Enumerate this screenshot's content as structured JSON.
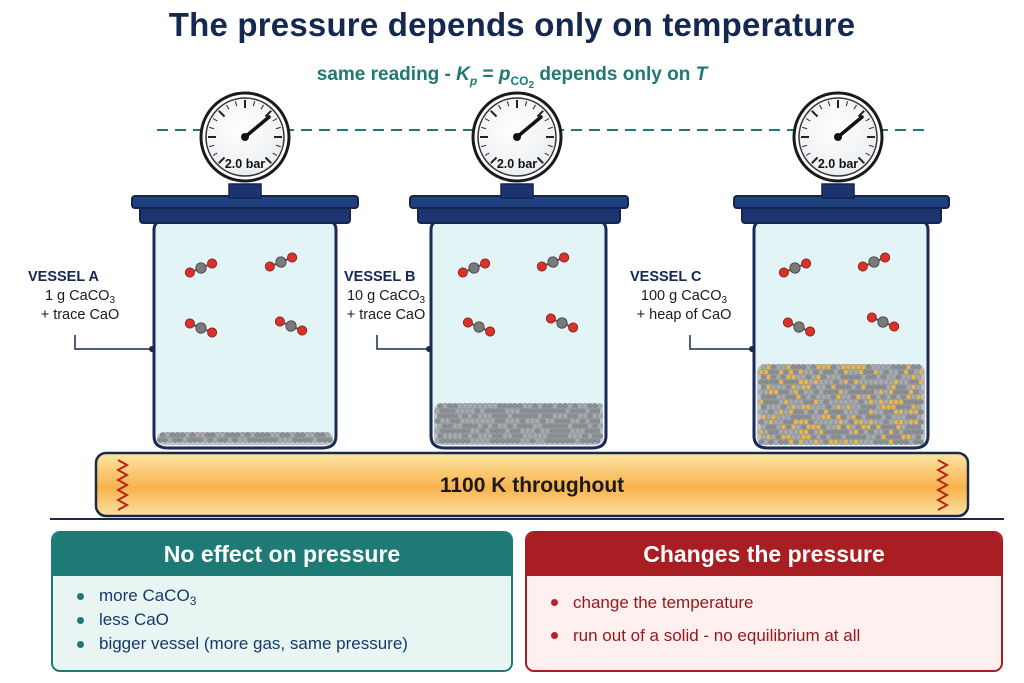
{
  "title": "The pressure depends only on temperature",
  "subtitle": {
    "prefix": "same reading - ",
    "k": "K",
    "k_sub": "p",
    "eq": " = ",
    "p": "p",
    "p_sub": "CO",
    "p_sub_sub": "2",
    "suffix": " depends only on ",
    "t": "T"
  },
  "gauge_reading": "2.0 bar",
  "vessels": [
    {
      "name": "VESSEL A",
      "line1_prefix": "1 g CaCO",
      "line1_sub": "3",
      "line2": "+ trace CaO"
    },
    {
      "name": "VESSEL B",
      "line1_prefix": "10 g CaCO",
      "line1_sub": "3",
      "line2": "+ trace CaO"
    },
    {
      "name": "VESSEL C",
      "line1_prefix": "100 g CaCO",
      "line1_sub": "3",
      "line2": "+ heap of CaO"
    }
  ],
  "heater_label": "1100 K throughout",
  "panels": {
    "no_effect": {
      "title": "No effect on pressure",
      "items": [
        {
          "text": "more CaCO",
          "sub": "3"
        },
        {
          "text": "less CaO",
          "sub": ""
        },
        {
          "text": "bigger vessel (more gas, same pressure)",
          "sub": ""
        }
      ]
    },
    "changes": {
      "title": "Changes the pressure",
      "items": [
        {
          "text": "change the temperature"
        },
        {
          "text": "run out of a solid - no equilibrium at all"
        }
      ]
    }
  },
  "colors": {
    "navy": "#142850",
    "teal": "#1e7a74",
    "red": "#a81e22",
    "glass": "#e3f4f6",
    "oxygen": "#d8322c",
    "carbon": "#7a7a7a",
    "heater": "#f7b24a"
  }
}
